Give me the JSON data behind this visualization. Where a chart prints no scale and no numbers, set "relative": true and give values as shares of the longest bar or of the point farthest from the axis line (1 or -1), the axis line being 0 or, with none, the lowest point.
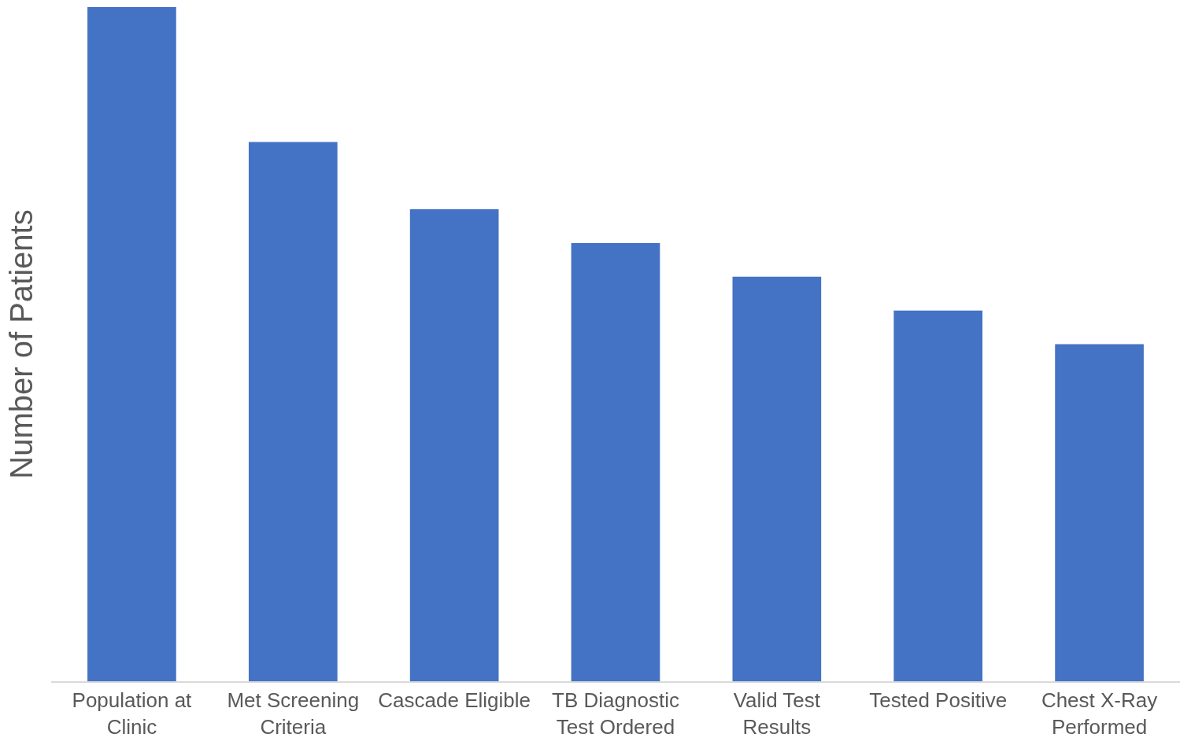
{
  "chart_data": {
    "type": "bar",
    "relative": true,
    "ylabel": "Number of Patients",
    "categories": [
      "Population at Clinic",
      "Met Screening Criteria",
      "Cascade Eligible",
      "TB Diagnostic Test Ordered",
      "Valid Test Results",
      "Tested Positive",
      "Chest X-Ray Performed"
    ],
    "values": [
      1,
      0.8,
      0.7,
      0.65,
      0.6,
      0.55,
      0.5
    ],
    "color": "#4472c4"
  }
}
